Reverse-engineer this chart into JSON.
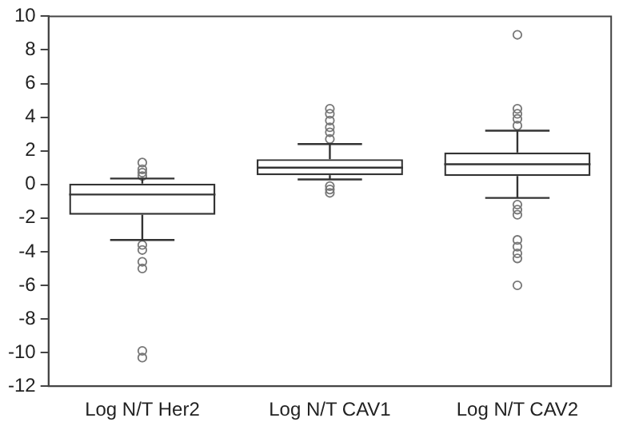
{
  "chart_data": {
    "type": "box",
    "categories": [
      "Log N/T Her2",
      "Log N/T CAV1",
      "Log N/T CAV2"
    ],
    "boxes": [
      {
        "low": -3.3,
        "q1": -1.8,
        "median": -0.6,
        "q3": 0.05,
        "high": 0.35,
        "outliers": [
          0.5,
          0.7,
          0.9,
          1.3,
          -3.6,
          -3.9,
          -4.6,
          -5.0,
          -9.9,
          -10.3
        ]
      },
      {
        "low": 0.3,
        "q1": 0.55,
        "median": 1.0,
        "q3": 1.5,
        "high": 2.4,
        "outliers": [
          2.7,
          3.1,
          3.4,
          3.8,
          4.2,
          4.5,
          -0.1,
          -0.3,
          -0.5
        ]
      },
      {
        "low": -0.8,
        "q1": 0.5,
        "median": 1.2,
        "q3": 1.9,
        "high": 3.2,
        "outliers": [
          3.5,
          3.9,
          4.2,
          4.5,
          8.9,
          -1.2,
          -1.5,
          -1.8,
          -3.3,
          -3.7,
          -4.1,
          -4.4,
          -6.0
        ]
      }
    ],
    "color": "#333333",
    "ylim": [
      -12,
      10
    ],
    "yticks": [
      -12,
      -10,
      -8,
      -6,
      -4,
      -2,
      0,
      2,
      4,
      6,
      8,
      10
    ],
    "grid": false
  }
}
